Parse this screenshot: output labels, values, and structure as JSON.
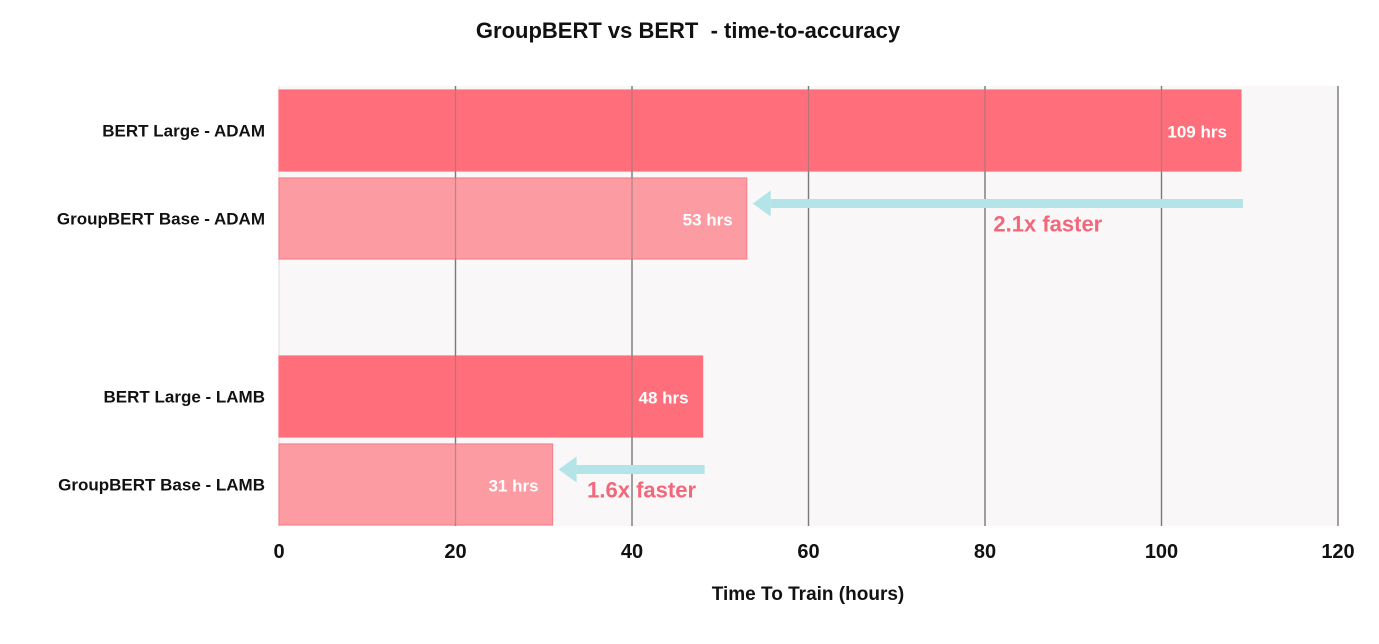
{
  "chart_data": {
    "type": "bar",
    "orientation": "horizontal",
    "title": "GroupBERT vs BERT  - time-to-accuracy",
    "xlabel": "Time To Train (hours)",
    "ylabel": "",
    "xlim": [
      0,
      120
    ],
    "xticks": [
      0,
      20,
      40,
      60,
      80,
      100,
      120
    ],
    "grid": "vertical",
    "categories": [
      "BERT Large - ADAM",
      "GroupBERT Base  - ADAM",
      "BERT Large - LAMB",
      "GroupBERT Base  - LAMB"
    ],
    "values": [
      109,
      53,
      48,
      31
    ],
    "data_labels": [
      "109 hrs",
      "53 hrs",
      "48 hrs",
      "31 hrs"
    ],
    "groups": [
      {
        "categories": [
          0,
          1
        ]
      },
      {
        "categories": [
          2,
          3
        ]
      }
    ],
    "annotations": [
      {
        "text": "2.1x faster",
        "from": 109,
        "to": 53
      },
      {
        "text": "1.6x faster",
        "from": 48,
        "to": 31
      }
    ],
    "colors": {
      "bert_bar": "#ff6f7b",
      "groupbert_bar": "#fd9ba2",
      "arrow": "#b2e4e8",
      "annotation_text": "#f2677a",
      "plot_bg": "#f9f7f8",
      "grid": "#7a7a7a",
      "text": "#111111"
    }
  }
}
